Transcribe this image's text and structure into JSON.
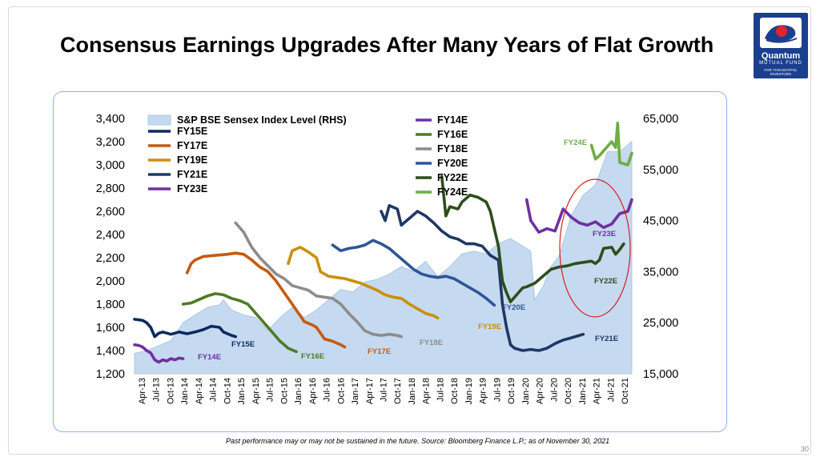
{
  "slide": {
    "title": "Consensus Earnings Upgrades After Many Years of Flat Growth",
    "footnote": "Past performance may or may not be sustained in the future. Source: Bloomberg Finance L.P.; as of November 30, 2021",
    "page_number": "30"
  },
  "logo": {
    "name": "Quantum",
    "sub": "MUTUAL FUND",
    "tagline": "FOR THOUGHTFUL INVESTORS",
    "icon": "quantum-logo-icon"
  },
  "colors": {
    "index_fill": "#c5daf0",
    "index_edge": "#9ebfe2",
    "FY14E": "#7030a0",
    "FY15E": "#0c2a5e",
    "FY16E": "#4f7a28",
    "FY17E": "#c55a11",
    "FY18E": "#8c8c8c",
    "FY19E": "#c8900e",
    "FY20E": "#2f5597",
    "FY21E": "#1f3864",
    "FY22E": "#2e4d1c",
    "FY23E": "#7030a0",
    "FY24E": "#70ad47",
    "highlight": "#d42020"
  },
  "chart_data": {
    "type": "line",
    "title": "",
    "x_tick_labels": [
      "Apr-13",
      "Jul-13",
      "Oct-13",
      "Jan-14",
      "Apr-14",
      "Jul-14",
      "Oct-14",
      "Jan-15",
      "Apr-15",
      "Jul-15",
      "Oct-15",
      "Jan-16",
      "Apr-16",
      "Jul-16",
      "Oct-16",
      "Jan-17",
      "Apr-17",
      "Jul-17",
      "Oct-17",
      "Jan-18",
      "Apr-18",
      "Jul-18",
      "Oct-18",
      "Jan-19",
      "Apr-19",
      "Jul-19",
      "Oct-19",
      "Jan-20",
      "Apr-20",
      "Jul-20",
      "Oct-20",
      "Jan-21",
      "Apr-21",
      "Jul-21",
      "Oct-21"
    ],
    "left_axis": {
      "min": 1200,
      "max": 3400,
      "ticks": [
        "1,200",
        "1,400",
        "1,600",
        "1,800",
        "2,000",
        "2,200",
        "2,400",
        "2,600",
        "2,800",
        "3,000",
        "3,200",
        "3,400"
      ]
    },
    "right_axis": {
      "min": 15000,
      "max": 65000,
      "ticks": [
        "15,000",
        "25,000",
        "35,000",
        "45,000",
        "55,000",
        "65,000"
      ]
    },
    "legend": [
      "S&P BSE Sensex Index Level (RHS)",
      "FY14E",
      "FY15E",
      "FY16E",
      "FY17E",
      "FY18E",
      "FY19E",
      "FY20E",
      "FY21E",
      "FY22E",
      "FY23E",
      "FY24E"
    ],
    "area_series": {
      "name": "S&P BSE Sensex Index Level (RHS)",
      "axis": "right",
      "points": [
        [
          0,
          19000
        ],
        [
          3,
          19500
        ],
        [
          6,
          20500
        ],
        [
          9,
          21500
        ],
        [
          12,
          25000
        ],
        [
          15,
          26500
        ],
        [
          18,
          28000
        ],
        [
          21,
          28500
        ],
        [
          22,
          29500
        ],
        [
          24,
          27500
        ],
        [
          27,
          26500
        ],
        [
          30,
          26000
        ],
        [
          33,
          23500
        ],
        [
          36,
          26000
        ],
        [
          39,
          28000
        ],
        [
          42,
          26000
        ],
        [
          45,
          27500
        ],
        [
          48,
          29500
        ],
        [
          51,
          31500
        ],
        [
          54,
          31000
        ],
        [
          57,
          33000
        ],
        [
          60,
          33500
        ],
        [
          63,
          34500
        ],
        [
          66,
          36000
        ],
        [
          69,
          35000
        ],
        [
          72,
          37000
        ],
        [
          75,
          34000
        ],
        [
          78,
          36000
        ],
        [
          81,
          38500
        ],
        [
          84,
          39000
        ],
        [
          87,
          38500
        ],
        [
          90,
          40500
        ],
        [
          93,
          41500
        ],
        [
          96,
          40000
        ],
        [
          98,
          39000
        ],
        [
          99,
          29500
        ],
        [
          101,
          32000
        ],
        [
          103,
          36000
        ],
        [
          105,
          38000
        ],
        [
          108,
          46000
        ],
        [
          111,
          50000
        ],
        [
          114,
          52000
        ],
        [
          117,
          58500
        ],
        [
          120,
          58500
        ],
        [
          123,
          60500
        ]
      ]
    },
    "series": [
      {
        "name": "FY14E",
        "label": "FY14E",
        "points": [
          [
            0,
            1450
          ],
          [
            1,
            1445
          ],
          [
            2,
            1430
          ],
          [
            3,
            1400
          ],
          [
            4,
            1380
          ],
          [
            5,
            1320
          ],
          [
            6,
            1300
          ],
          [
            7,
            1320
          ],
          [
            8,
            1310
          ],
          [
            9,
            1330
          ],
          [
            10,
            1320
          ],
          [
            11,
            1335
          ],
          [
            12,
            1330
          ]
        ]
      },
      {
        "name": "FY15E",
        "label": "FY15E",
        "points": [
          [
            0,
            1670
          ],
          [
            2,
            1660
          ],
          [
            3,
            1640
          ],
          [
            4,
            1600
          ],
          [
            5,
            1520
          ],
          [
            6,
            1550
          ],
          [
            7,
            1560
          ],
          [
            9,
            1540
          ],
          [
            11,
            1560
          ],
          [
            13,
            1545
          ],
          [
            15,
            1560
          ],
          [
            17,
            1580
          ],
          [
            19,
            1610
          ],
          [
            21,
            1600
          ],
          [
            22,
            1560
          ],
          [
            24,
            1530
          ],
          [
            25,
            1520
          ]
        ]
      },
      {
        "name": "FY16E",
        "label": "FY16E",
        "points": [
          [
            12,
            1800
          ],
          [
            14,
            1810
          ],
          [
            16,
            1840
          ],
          [
            18,
            1870
          ],
          [
            20,
            1890
          ],
          [
            22,
            1880
          ],
          [
            24,
            1850
          ],
          [
            26,
            1830
          ],
          [
            28,
            1800
          ],
          [
            30,
            1720
          ],
          [
            32,
            1640
          ],
          [
            34,
            1560
          ],
          [
            36,
            1480
          ],
          [
            38,
            1420
          ],
          [
            40,
            1390
          ]
        ]
      },
      {
        "name": "FY17E",
        "label": "FY17E",
        "points": [
          [
            13,
            2070
          ],
          [
            14,
            2150
          ],
          [
            15,
            2180
          ],
          [
            17,
            2210
          ],
          [
            20,
            2220
          ],
          [
            23,
            2230
          ],
          [
            25,
            2240
          ],
          [
            27,
            2230
          ],
          [
            29,
            2180
          ],
          [
            31,
            2120
          ],
          [
            33,
            2080
          ],
          [
            35,
            2000
          ],
          [
            37,
            1900
          ],
          [
            39,
            1800
          ],
          [
            41,
            1700
          ],
          [
            42,
            1650
          ],
          [
            44,
            1620
          ],
          [
            45,
            1600
          ],
          [
            47,
            1500
          ],
          [
            49,
            1480
          ],
          [
            51,
            1450
          ],
          [
            52,
            1430
          ]
        ]
      },
      {
        "name": "FY18E",
        "label": "FY18E",
        "points": [
          [
            25,
            2500
          ],
          [
            27,
            2420
          ],
          [
            29,
            2290
          ],
          [
            31,
            2200
          ],
          [
            33,
            2130
          ],
          [
            35,
            2060
          ],
          [
            37,
            2020
          ],
          [
            39,
            1960
          ],
          [
            41,
            1940
          ],
          [
            43,
            1920
          ],
          [
            45,
            1870
          ],
          [
            47,
            1860
          ],
          [
            49,
            1850
          ],
          [
            51,
            1800
          ],
          [
            53,
            1720
          ],
          [
            55,
            1650
          ],
          [
            57,
            1570
          ],
          [
            59,
            1540
          ],
          [
            61,
            1530
          ],
          [
            63,
            1540
          ],
          [
            65,
            1530
          ],
          [
            66,
            1520
          ]
        ]
      },
      {
        "name": "FY19E",
        "label": "FY19E",
        "points": [
          [
            38,
            2150
          ],
          [
            39,
            2260
          ],
          [
            41,
            2290
          ],
          [
            43,
            2250
          ],
          [
            45,
            2200
          ],
          [
            46,
            2080
          ],
          [
            48,
            2040
          ],
          [
            50,
            2030
          ],
          [
            52,
            2020
          ],
          [
            54,
            2000
          ],
          [
            56,
            1980
          ],
          [
            58,
            1950
          ],
          [
            60,
            1920
          ],
          [
            62,
            1880
          ],
          [
            64,
            1860
          ],
          [
            66,
            1850
          ],
          [
            68,
            1800
          ],
          [
            70,
            1760
          ],
          [
            72,
            1720
          ],
          [
            74,
            1700
          ],
          [
            75,
            1680
          ]
        ]
      },
      {
        "name": "FY20E",
        "label": "FY20E",
        "points": [
          [
            49,
            2310
          ],
          [
            51,
            2260
          ],
          [
            53,
            2280
          ],
          [
            55,
            2290
          ],
          [
            57,
            2310
          ],
          [
            59,
            2350
          ],
          [
            61,
            2320
          ],
          [
            63,
            2280
          ],
          [
            65,
            2220
          ],
          [
            67,
            2160
          ],
          [
            69,
            2100
          ],
          [
            71,
            2060
          ],
          [
            73,
            2040
          ],
          [
            75,
            2030
          ],
          [
            77,
            2040
          ],
          [
            79,
            2020
          ],
          [
            81,
            1980
          ],
          [
            83,
            1940
          ],
          [
            85,
            1900
          ],
          [
            87,
            1850
          ],
          [
            89,
            1790
          ]
        ]
      },
      {
        "name": "FY21E",
        "label": "FY21E",
        "points": [
          [
            61,
            2600
          ],
          [
            62,
            2520
          ],
          [
            63,
            2650
          ],
          [
            65,
            2620
          ],
          [
            66,
            2480
          ],
          [
            68,
            2540
          ],
          [
            70,
            2600
          ],
          [
            72,
            2560
          ],
          [
            74,
            2500
          ],
          [
            76,
            2430
          ],
          [
            78,
            2380
          ],
          [
            80,
            2360
          ],
          [
            82,
            2320
          ],
          [
            84,
            2320
          ],
          [
            86,
            2300
          ],
          [
            88,
            2220
          ],
          [
            90,
            2180
          ],
          [
            91,
            1800
          ],
          [
            92,
            1600
          ],
          [
            93,
            1450
          ],
          [
            94,
            1420
          ],
          [
            96,
            1400
          ],
          [
            98,
            1410
          ],
          [
            100,
            1400
          ],
          [
            102,
            1420
          ],
          [
            104,
            1460
          ],
          [
            106,
            1490
          ],
          [
            108,
            1510
          ],
          [
            110,
            1530
          ],
          [
            111,
            1540
          ]
        ]
      },
      {
        "name": "FY22E",
        "label": "FY22E",
        "points": [
          [
            76,
            2900
          ],
          [
            77,
            2560
          ],
          [
            78,
            2640
          ],
          [
            80,
            2620
          ],
          [
            81,
            2680
          ],
          [
            83,
            2740
          ],
          [
            85,
            2720
          ],
          [
            87,
            2680
          ],
          [
            88,
            2600
          ],
          [
            89,
            2450
          ],
          [
            90,
            2300
          ],
          [
            91,
            2000
          ],
          [
            92,
            1900
          ],
          [
            93,
            1820
          ],
          [
            94,
            1860
          ],
          [
            95,
            1900
          ],
          [
            96,
            1940
          ],
          [
            97,
            1950
          ],
          [
            99,
            1980
          ],
          [
            101,
            2040
          ],
          [
            103,
            2100
          ],
          [
            105,
            2120
          ],
          [
            107,
            2130
          ],
          [
            109,
            2150
          ],
          [
            111,
            2160
          ],
          [
            113,
            2170
          ],
          [
            114,
            2150
          ],
          [
            115,
            2180
          ],
          [
            116,
            2280
          ],
          [
            118,
            2290
          ],
          [
            119,
            2230
          ],
          [
            120,
            2270
          ],
          [
            121,
            2320
          ]
        ]
      },
      {
        "name": "FY23E",
        "label": "FY23E",
        "points": [
          [
            97,
            2700
          ],
          [
            98,
            2520
          ],
          [
            100,
            2420
          ],
          [
            102,
            2450
          ],
          [
            104,
            2430
          ],
          [
            106,
            2620
          ],
          [
            108,
            2550
          ],
          [
            110,
            2500
          ],
          [
            112,
            2480
          ],
          [
            114,
            2510
          ],
          [
            116,
            2460
          ],
          [
            118,
            2490
          ],
          [
            120,
            2580
          ],
          [
            122,
            2600
          ],
          [
            123,
            2700
          ]
        ]
      },
      {
        "name": "FY24E",
        "label": "FY24E",
        "points": [
          [
            113,
            3170
          ],
          [
            114,
            3050
          ],
          [
            115,
            3080
          ],
          [
            116,
            3120
          ],
          [
            118,
            3200
          ],
          [
            119,
            3150
          ],
          [
            119.5,
            3360
          ],
          [
            120,
            3020
          ],
          [
            121,
            3010
          ],
          [
            122,
            3000
          ],
          [
            123,
            3100
          ]
        ]
      }
    ],
    "highlight": {
      "type": "ellipse",
      "color": "#d42020"
    }
  }
}
